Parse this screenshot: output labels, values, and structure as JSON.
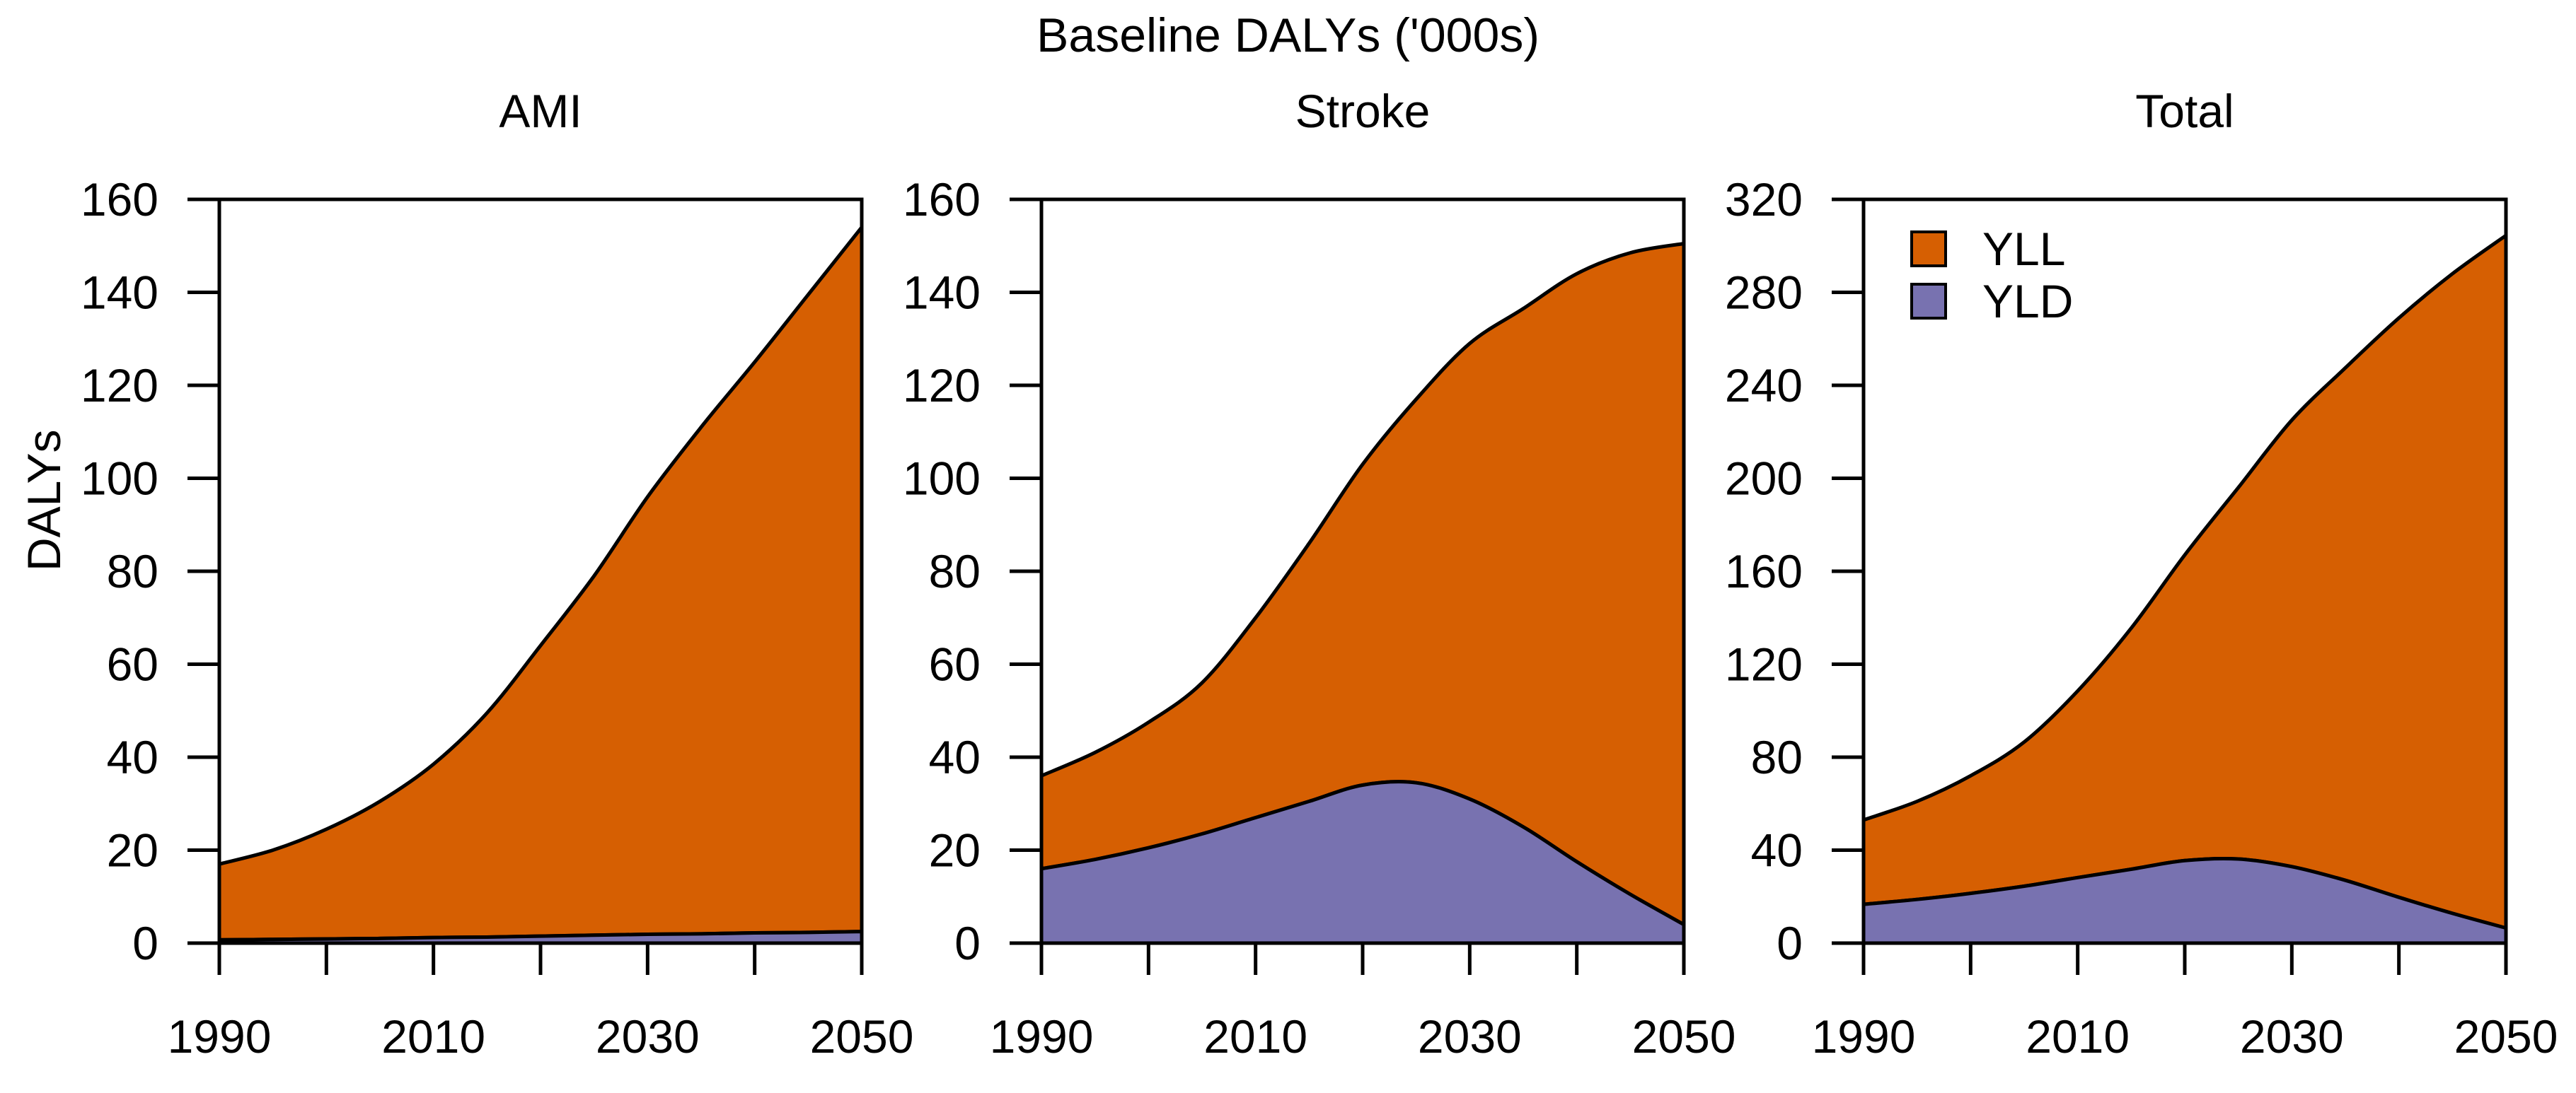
{
  "title": "Baseline DALYs ('000s)",
  "y_axis_label": "DALYs",
  "colors": {
    "yll": "#D65F02",
    "yld": "#7872B0",
    "axis": "#000000",
    "background": "#FFFFFF"
  },
  "legend": {
    "position": "top-left-of-total-panel",
    "items": [
      {
        "label": "YLL",
        "color_key": "yll"
      },
      {
        "label": "YLD",
        "color_key": "yld"
      }
    ]
  },
  "chart_data": {
    "type": "area",
    "stacked": true,
    "grid": false,
    "title": "Baseline DALYs ('000s)",
    "ylabel": "DALYs",
    "xlabel": "",
    "x": [
      1990,
      1995,
      2000,
      2005,
      2010,
      2015,
      2020,
      2025,
      2030,
      2035,
      2040,
      2045,
      2050
    ],
    "x_range": [
      1990,
      2050
    ],
    "x_ticks": [
      1990,
      2000,
      2010,
      2020,
      2030,
      2040,
      2050
    ],
    "x_tick_labels_shown": [
      1990,
      2010,
      2030,
      2050
    ],
    "panels": [
      {
        "title": "AMI",
        "ylim": [
          0,
          160
        ],
        "y_ticks": [
          0,
          20,
          40,
          60,
          80,
          100,
          120,
          140,
          160
        ],
        "series": [
          {
            "name": "YLD",
            "values": [
              0.7,
              0.8,
              0.9,
              1.0,
              1.2,
              1.3,
              1.5,
              1.7,
              1.9,
              2.0,
              2.2,
              2.3,
              2.5
            ]
          },
          {
            "name": "YLL",
            "values": [
              16.3,
              19.2,
              23.6,
              29.5,
              37.3,
              48.2,
              62.5,
              77.3,
              94.1,
              109.0,
              122.8,
              137.2,
              151.5
            ]
          }
        ]
      },
      {
        "title": "Stroke",
        "ylim": [
          0,
          160
        ],
        "y_ticks": [
          0,
          20,
          40,
          60,
          80,
          100,
          120,
          140,
          160
        ],
        "series": [
          {
            "name": "YLD",
            "values": [
              16.0,
              18.0,
              20.5,
              23.5,
              27.0,
              30.5,
              34.0,
              34.5,
              31.0,
              25.0,
              17.5,
              10.5,
              4.0
            ]
          },
          {
            "name": "YLL",
            "values": [
              20.0,
              23.0,
              27.0,
              32.5,
              43.0,
              55.5,
              69.0,
              82.5,
              98.0,
              111.5,
              126.5,
              138.0,
              146.5
            ]
          }
        ]
      },
      {
        "title": "Total",
        "ylim": [
          0,
          320
        ],
        "y_ticks": [
          0,
          40,
          80,
          120,
          160,
          200,
          240,
          280,
          320
        ],
        "series": [
          {
            "name": "YLD",
            "values": [
              16.7,
              18.8,
              21.4,
              24.5,
              28.2,
              31.8,
              35.5,
              36.2,
              32.9,
              27.0,
              19.7,
              12.8,
              6.5
            ]
          },
          {
            "name": "YLL",
            "values": [
              36.3,
              42.2,
              50.6,
              62.0,
              80.3,
              103.7,
              131.5,
              159.8,
              192.1,
              220.5,
              249.3,
              275.2,
              298.0
            ]
          }
        ]
      }
    ]
  }
}
